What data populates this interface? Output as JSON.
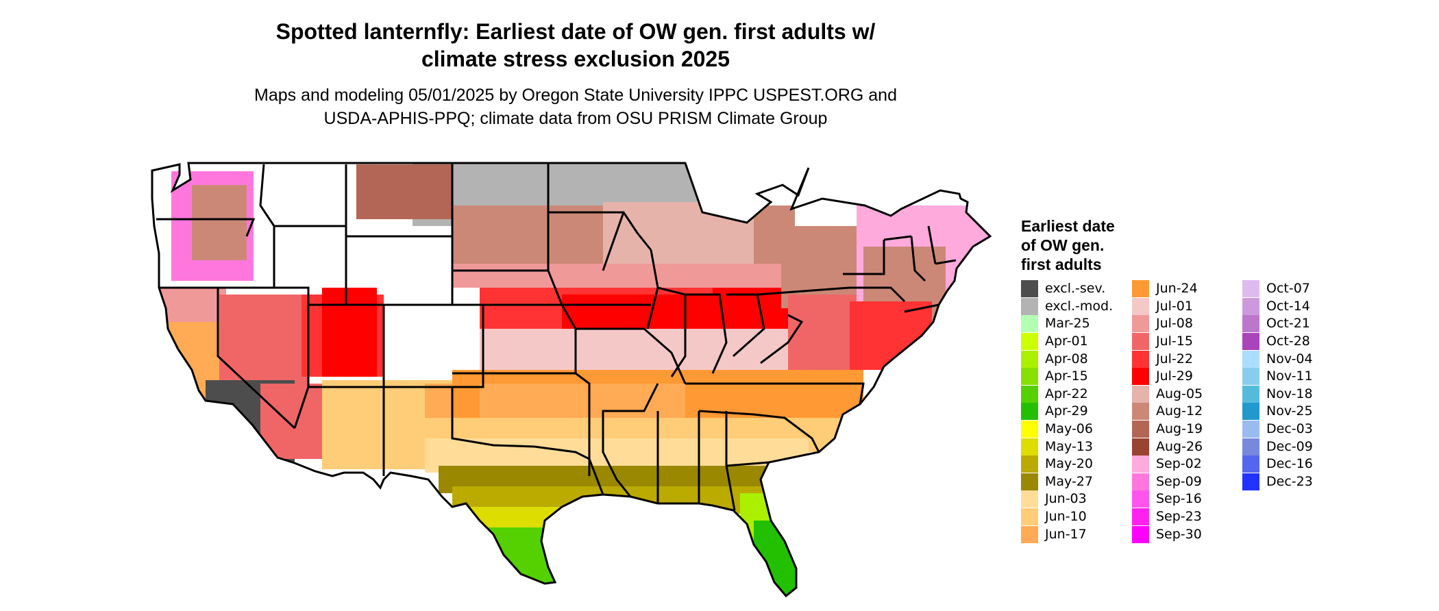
{
  "title_line1": "Spotted lanternfly: Earliest date of OW gen. first adults w/",
  "title_line2": "climate stress exclusion 2025",
  "subtitle_line1": "Maps and modeling 05/01/2025 by Oregon State University IPPC USPEST.ORG and",
  "subtitle_line2": "USDA-APHIS-PPQ; climate data from OSU PRISM Climate Group",
  "legend": {
    "title_line1": "Earliest date",
    "title_line2": "of OW gen.",
    "title_line3": "first adults",
    "columns": [
      [
        {
          "label": "excl.-sev.",
          "color": "#4d4d4d"
        },
        {
          "label": "excl.-mod.",
          "color": "#b3b3b3"
        },
        {
          "label": "Mar-25",
          "color": "#b3ffb3"
        },
        {
          "label": "Apr-01",
          "color": "#ccff00"
        },
        {
          "label": "Apr-08",
          "color": "#aaf000"
        },
        {
          "label": "Apr-15",
          "color": "#88e000"
        },
        {
          "label": "Apr-22",
          "color": "#55d000"
        },
        {
          "label": "Apr-29",
          "color": "#22c000"
        },
        {
          "label": "May-06",
          "color": "#ffff00"
        },
        {
          "label": "May-13",
          "color": "#dddd00"
        },
        {
          "label": "May-20",
          "color": "#bbaa00"
        },
        {
          "label": "May-27",
          "color": "#998800"
        },
        {
          "label": "Jun-03",
          "color": "#ffdd99"
        },
        {
          "label": "Jun-10",
          "color": "#ffcc77"
        },
        {
          "label": "Jun-17",
          "color": "#ffaa55"
        }
      ],
      [
        {
          "label": "Jun-24",
          "color": "#ff9933"
        },
        {
          "label": "Jul-01",
          "color": "#f5c8c8"
        },
        {
          "label": "Jul-08",
          "color": "#f09999"
        },
        {
          "label": "Jul-15",
          "color": "#f06666"
        },
        {
          "label": "Jul-22",
          "color": "#ff3333"
        },
        {
          "label": "Jul-29",
          "color": "#ff0000"
        },
        {
          "label": "Aug-05",
          "color": "#e6b3aa"
        },
        {
          "label": "Aug-12",
          "color": "#cc8877"
        },
        {
          "label": "Aug-19",
          "color": "#b36655"
        },
        {
          "label": "Aug-26",
          "color": "#994433"
        },
        {
          "label": "Sep-02",
          "color": "#ffaadd"
        },
        {
          "label": "Sep-09",
          "color": "#ff77dd"
        },
        {
          "label": "Sep-16",
          "color": "#ff55ee"
        },
        {
          "label": "Sep-23",
          "color": "#ff22ee"
        },
        {
          "label": "Sep-30",
          "color": "#ff00ff"
        }
      ],
      [
        {
          "label": "Oct-07",
          "color": "#ddbbee"
        },
        {
          "label": "Oct-14",
          "color": "#cc99dd"
        },
        {
          "label": "Oct-21",
          "color": "#bb77cc"
        },
        {
          "label": "Oct-28",
          "color": "#aa44bb"
        },
        {
          "label": "Nov-04",
          "color": "#aaddff"
        },
        {
          "label": "Nov-11",
          "color": "#88ccee"
        },
        {
          "label": "Nov-18",
          "color": "#55bbdd"
        },
        {
          "label": "Nov-25",
          "color": "#2299cc"
        },
        {
          "label": "Dec-03",
          "color": "#99bbee"
        },
        {
          "label": "Dec-09",
          "color": "#7788dd"
        },
        {
          "label": "Dec-16",
          "color": "#5566ee"
        },
        {
          "label": "Dec-23",
          "color": "#2233ff"
        }
      ]
    ]
  }
}
